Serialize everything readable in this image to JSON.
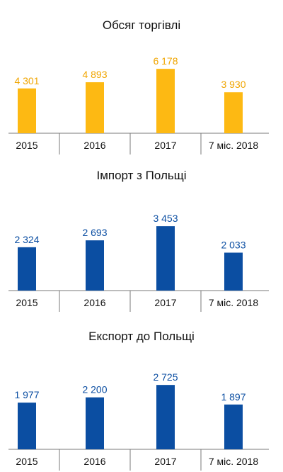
{
  "colors": {
    "trade": "#fdb913",
    "import": "#0b4ea2",
    "export": "#0b4ea2",
    "axis": "#7a7a7a",
    "category_text": "#111111"
  },
  "chart_data": [
    {
      "type": "bar",
      "title": "Обсяг торгівлі",
      "categories": [
        "2015",
        "2016",
        "2017",
        "7 міс. 2018"
      ],
      "values": [
        4301,
        4893,
        6178,
        3930
      ],
      "value_labels": [
        "4 301",
        "4 893",
        "6 178",
        "3 930"
      ],
      "color": "#fdb913",
      "label_color": "#f0a500",
      "ylim": [
        0,
        6800
      ],
      "grid": false
    },
    {
      "type": "bar",
      "title": "Імпорт з Польщі",
      "categories": [
        "2015",
        "2016",
        "2017",
        "7 міс. 2018"
      ],
      "values": [
        2324,
        2693,
        3453,
        2033
      ],
      "value_labels": [
        "2 324",
        "2 693",
        "3 453",
        "2 033"
      ],
      "color": "#0b4ea2",
      "label_color": "#0b4ea2",
      "ylim": [
        0,
        3800
      ],
      "grid": false
    },
    {
      "type": "bar",
      "title": "Експорт до Польщі",
      "categories": [
        "2015",
        "2016",
        "2017",
        "7 міс. 2018"
      ],
      "values": [
        1977,
        2200,
        2725,
        1897
      ],
      "value_labels": [
        "1 977",
        "2 200",
        "2 725",
        "1 897"
      ],
      "color": "#0b4ea2",
      "label_color": "#0b4ea2",
      "ylim": [
        0,
        3000
      ],
      "grid": false
    }
  ]
}
